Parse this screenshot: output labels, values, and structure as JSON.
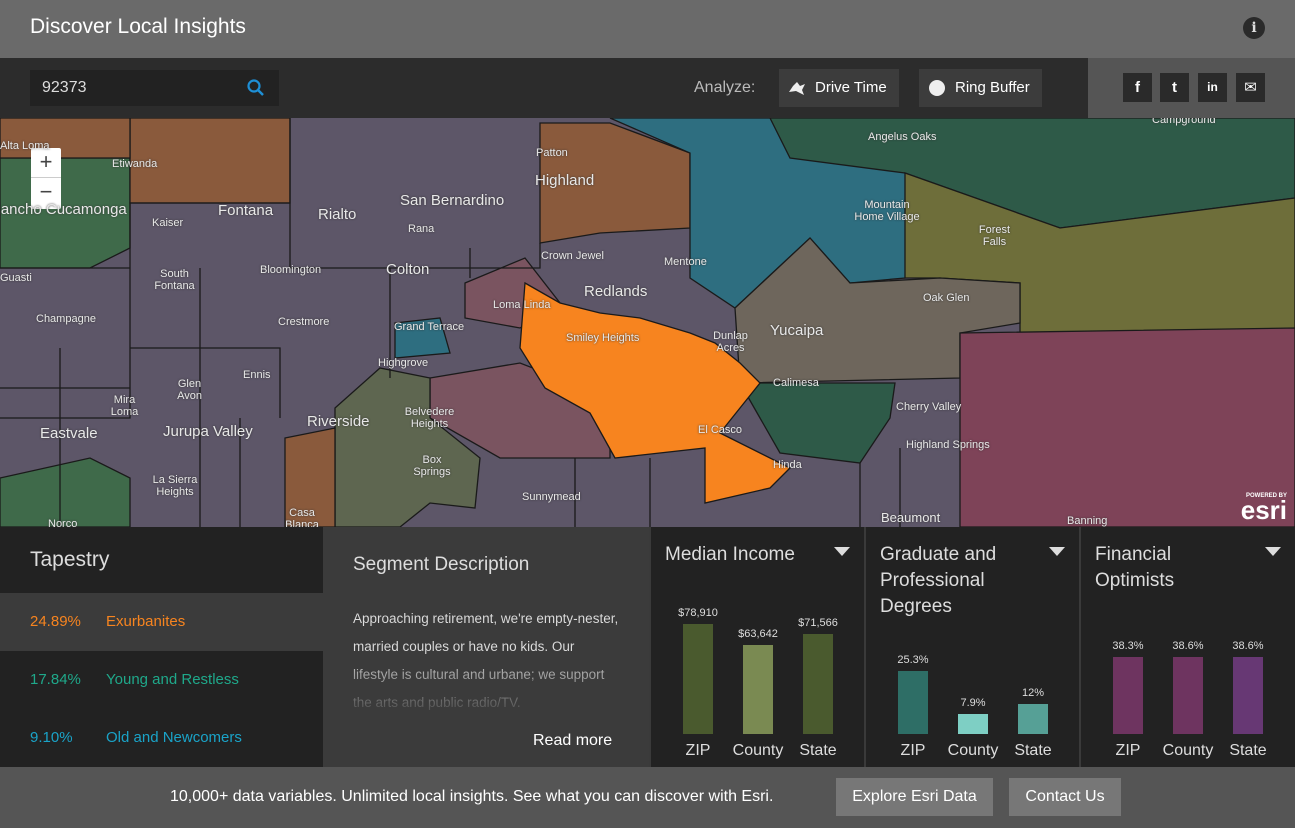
{
  "header": {
    "title": "Discover Local Insights",
    "info_icon": "info-icon"
  },
  "toolbar": {
    "search_value": "92373",
    "search_placeholder": "",
    "analyze_label": "Analyze:",
    "drive_time": "Drive Time",
    "ring_buffer": "Ring Buffer",
    "share": [
      "facebook-icon",
      "twitter-icon",
      "linkedin-icon",
      "email-icon"
    ]
  },
  "map": {
    "zoom_in": "+",
    "zoom_out": "−",
    "attribution": {
      "powered": "POWERED BY",
      "brand": "esri"
    },
    "labels": [
      "Alta Loma",
      "Etiwanda",
      "Rancho Cucamonga",
      "Kaiser",
      "Fontana",
      "Rialto",
      "San Bernardino",
      "Patton",
      "Highland",
      "Angelus Oaks",
      "Campground",
      "Rana",
      "Crown Jewel",
      "Mentone",
      "Mountain Home Village",
      "Forest Falls",
      "Guasti",
      "South Fontana",
      "Bloomington",
      "Colton",
      "Redlands",
      "Oak Glen",
      "Champagne",
      "Crestmore",
      "Loma Linda",
      "Grand Terrace",
      "Smiley Heights",
      "Dunlap Acres",
      "Yucaipa",
      "Highgrove",
      "Glen Avon",
      "Ennis",
      "Mira Loma",
      "Calimesa",
      "Cherry Valley",
      "Belvedere Heights",
      "Riverside",
      "Eastvale",
      "Jurupa Valley",
      "El Casco",
      "Highland Springs",
      "Box Springs",
      "Hinda",
      "La Sierra Heights",
      "Sunnymead",
      "Norco",
      "Casa Blanca",
      "Beaumont",
      "Banning"
    ],
    "colors": {
      "base": "#5d5668",
      "selected": "#f7841f"
    }
  },
  "tapestry": {
    "title": "Tapestry",
    "rows": [
      {
        "pct": "24.89%",
        "name": "Exurbanites",
        "color": "#f7841f"
      },
      {
        "pct": "17.84%",
        "name": "Young and Restless",
        "color": "#1fa88a"
      },
      {
        "pct": "9.10%",
        "name": "Old and Newcomers",
        "color": "#1aa3c8"
      }
    ]
  },
  "segment": {
    "title": "Segment Description",
    "text": "Approaching retirement, we're empty-nester, married couples or have no kids. Our lifestyle is cultural and urbane; we support the arts and public radio/TV.",
    "read_more": "Read more"
  },
  "chart_data": [
    {
      "type": "bar",
      "title": "Median Income",
      "categories": [
        "ZIP",
        "County",
        "State"
      ],
      "values": [
        78910,
        63642,
        71566
      ],
      "labels": [
        "$78,910",
        "$63,642",
        "$71,566"
      ],
      "colors": [
        "#4a5a2e",
        "#7a8a52",
        "#4a5a2e"
      ]
    },
    {
      "type": "bar",
      "title": "Graduate and Professional Degrees",
      "categories": [
        "ZIP",
        "County",
        "State"
      ],
      "values": [
        25.3,
        7.9,
        12
      ],
      "labels": [
        "25.3%",
        "7.9%",
        "12%"
      ],
      "colors": [
        "#2e6e66",
        "#7ecfc4",
        "#56a096"
      ]
    },
    {
      "type": "bar",
      "title": "Financial Optimists",
      "categories": [
        "ZIP",
        "County",
        "State"
      ],
      "values": [
        38.3,
        38.6,
        38.6
      ],
      "labels": [
        "38.3%",
        "38.6%",
        "38.6%"
      ],
      "colors": [
        "#6e3460",
        "#6e3460",
        "#673874"
      ]
    }
  ],
  "footer": {
    "text": "10,000+ data variables. Unlimited local insights. See what you can discover with Esri.",
    "explore": "Explore Esri Data",
    "contact": "Contact Us"
  }
}
